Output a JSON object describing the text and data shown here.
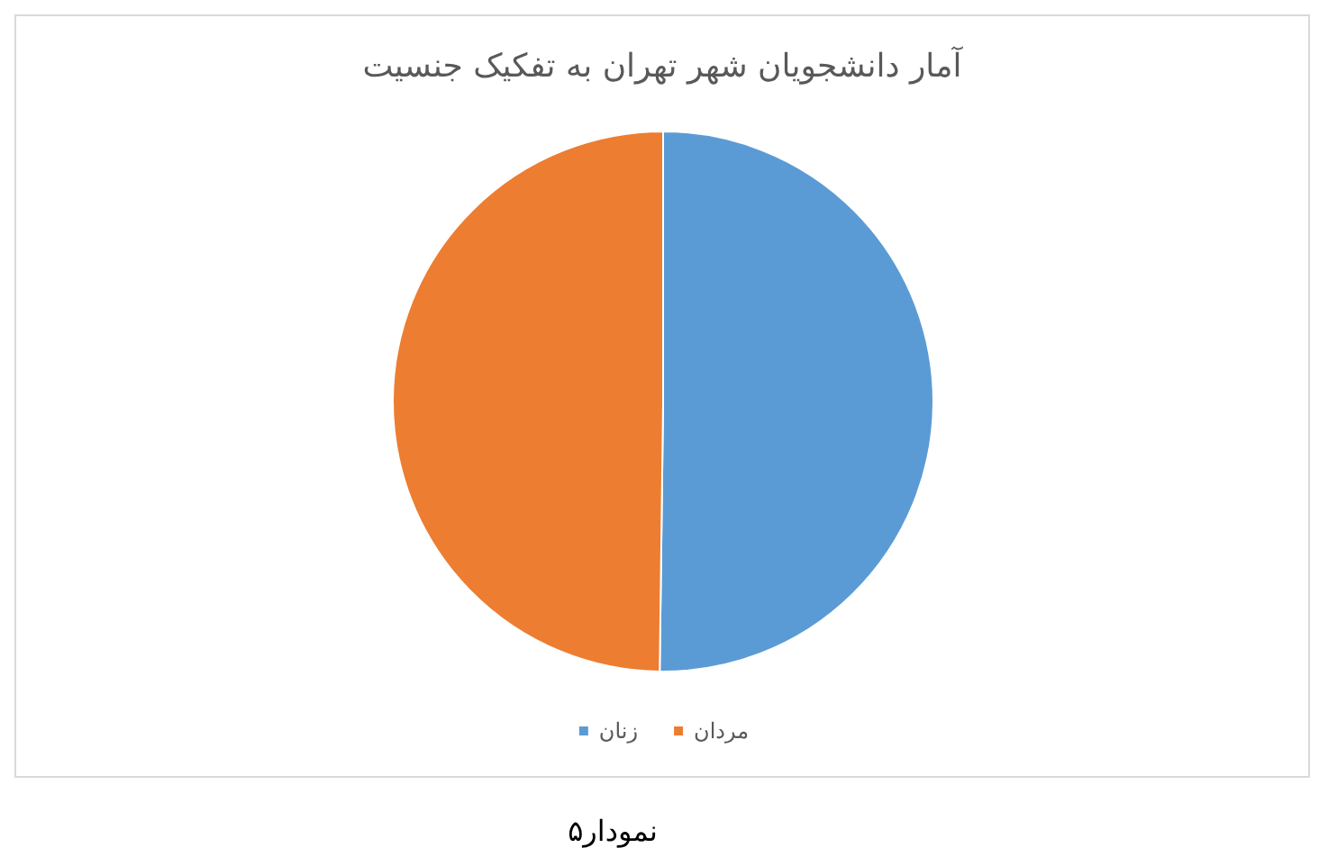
{
  "chart_data": {
    "type": "pie",
    "title": "آمار دانشجویان شهر تهران به تفکیک جنسیت",
    "categories": [
      "زنان",
      "مردان"
    ],
    "values": [
      50.2,
      49.8
    ],
    "colors": [
      "#5b9bd5",
      "#ed7d31"
    ],
    "legend": "bottom",
    "annotations": [
      "نمودار۵"
    ]
  }
}
